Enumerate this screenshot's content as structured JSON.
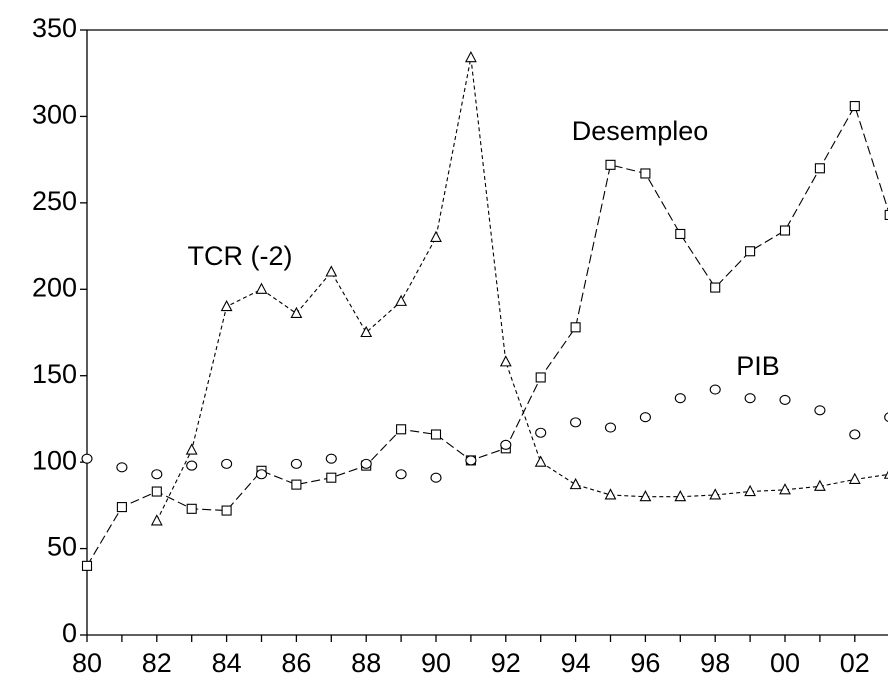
{
  "chart_data": {
    "type": "line",
    "categories": [
      "80",
      null,
      "82",
      null,
      "84",
      null,
      "86",
      null,
      "88",
      null,
      "90",
      null,
      "92",
      null,
      "94",
      null,
      "96",
      null,
      "98",
      null,
      "00",
      null,
      "02",
      null
    ],
    "series": [
      {
        "name": "Desempleo",
        "color": "#000000",
        "marker": "square",
        "line": "long-dash",
        "values": [
          40,
          74,
          83,
          73,
          72,
          95,
          87,
          91,
          98,
          119,
          116,
          101,
          108,
          149,
          178,
          272,
          267,
          232,
          201,
          222,
          234,
          270,
          306,
          243
        ]
      },
      {
        "name": "TCR (-2)",
        "color": "#000000",
        "marker": "triangle",
        "line": "short-dash",
        "values": [
          null,
          null,
          66,
          107,
          190,
          200,
          186,
          210,
          175,
          193,
          230,
          334,
          158,
          100,
          87,
          81,
          80,
          80,
          81,
          83,
          84,
          86,
          90,
          93
        ]
      },
      {
        "name": "PIB",
        "color": "#000000",
        "marker": "circle",
        "line": "none",
        "values": [
          102,
          97,
          93,
          98,
          99,
          93,
          99,
          102,
          99,
          93,
          91,
          101,
          110,
          117,
          123,
          120,
          126,
          137,
          142,
          137,
          136,
          130,
          116,
          126
        ]
      }
    ],
    "ylim": [
      0,
      350
    ],
    "yticks": [
      0,
      50,
      100,
      150,
      200,
      250,
      300,
      350
    ],
    "grid": false
  }
}
